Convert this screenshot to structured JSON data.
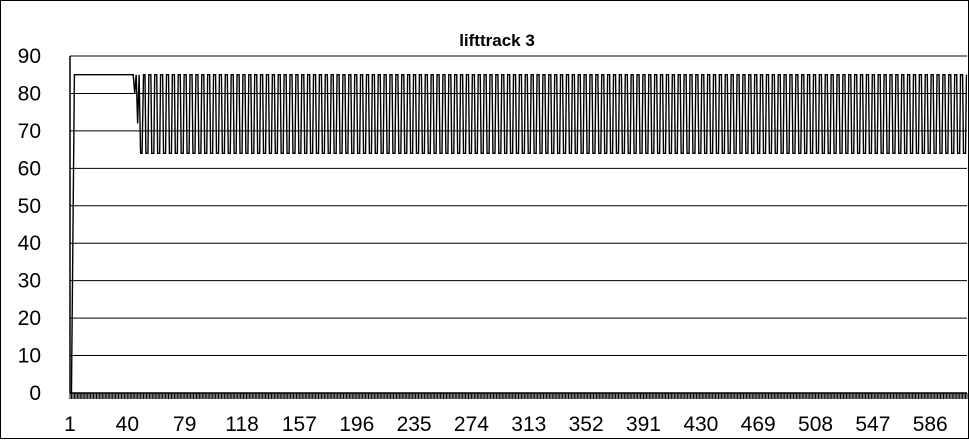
{
  "chart_data": {
    "type": "line",
    "title": "lifttrack 3",
    "xlabel": "",
    "ylabel": "",
    "ylim": [
      0,
      90
    ],
    "xlim": [
      1,
      611
    ],
    "y_ticks": [
      0,
      10,
      20,
      30,
      40,
      50,
      60,
      70,
      80,
      90
    ],
    "x_ticks": [
      1,
      40,
      79,
      118,
      157,
      196,
      235,
      274,
      313,
      352,
      391,
      430,
      469,
      508,
      547,
      586
    ],
    "x_tick_labels": [
      "1",
      "40",
      "79",
      "118",
      "157",
      "196",
      "235",
      "274",
      "313",
      "352",
      "391",
      "430",
      "469",
      "508",
      "547",
      "586"
    ],
    "grid": "horizontal",
    "legend": "none",
    "line_color": "#000000",
    "series": [
      {
        "segments": [
          {
            "kind": "points",
            "x": [
              1,
              2,
              4,
              5,
              44,
              45,
              46,
              47,
              48,
              49,
              50,
              51,
              52
            ],
            "y": [
              0,
              0,
              85,
              85,
              85,
              80,
              85,
              72,
              85,
              64,
              64,
              85,
              85
            ]
          },
          {
            "kind": "square_wave",
            "x_start": 52,
            "x_end": 611,
            "period": 4,
            "high": 85,
            "low": 64
          }
        ]
      }
    ]
  }
}
